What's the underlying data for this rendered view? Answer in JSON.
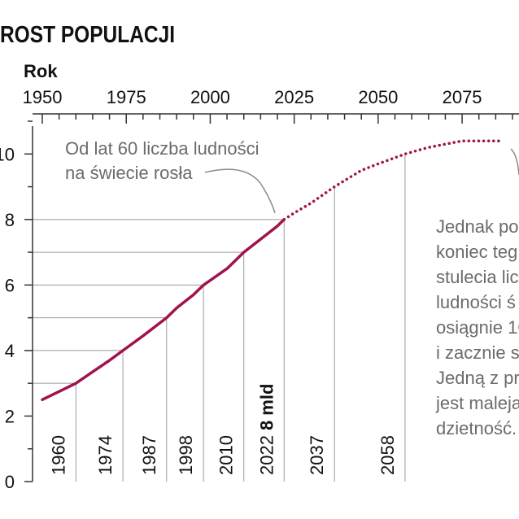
{
  "chart_data": {
    "type": "line",
    "title": "ROST POPULACJI",
    "x_axis_label": "Rok",
    "x_ticks": [
      1950,
      1975,
      2000,
      2025,
      2050,
      2075
    ],
    "y_ticks": [
      0,
      2,
      4,
      6,
      8,
      10
    ],
    "xlim": [
      1950,
      2090
    ],
    "ylim": [
      0,
      11
    ],
    "series": [
      {
        "style": "solid",
        "x": [
          1950,
          1955,
          1960,
          1965,
          1970,
          1974,
          1980,
          1987,
          1990,
          1995,
          1998,
          2005,
          2010,
          2015,
          2020,
          2022
        ],
        "y": [
          2.5,
          2.75,
          3.0,
          3.35,
          3.7,
          4.0,
          4.45,
          5.0,
          5.3,
          5.7,
          6.0,
          6.5,
          7.0,
          7.4,
          7.8,
          8.0
        ]
      },
      {
        "style": "dotted",
        "x": [
          2022,
          2025,
          2030,
          2037,
          2045,
          2050,
          2058,
          2065,
          2070,
          2075,
          2080,
          2086
        ],
        "y": [
          8.0,
          8.2,
          8.5,
          9.0,
          9.5,
          9.7,
          10.0,
          10.2,
          10.3,
          10.4,
          10.4,
          10.4
        ]
      }
    ],
    "milestones": [
      {
        "year": 1960,
        "value": 3,
        "label": "1960"
      },
      {
        "year": 1974,
        "value": 4,
        "label": "1974"
      },
      {
        "year": 1987,
        "value": 5,
        "label": "1987"
      },
      {
        "year": 1998,
        "value": 6,
        "label": "1998"
      },
      {
        "year": 2010,
        "value": 7,
        "label": "2010"
      },
      {
        "year": 2022,
        "value": 8,
        "label": "2022",
        "extra": "8 mld"
      },
      {
        "year": 2037,
        "value": 9,
        "label": "2037"
      },
      {
        "year": 2058,
        "value": 10,
        "label": "2058"
      }
    ],
    "annotations": [
      {
        "lines": [
          "Od lat 60 liczba ludności",
          "na świecie rosła"
        ]
      },
      {
        "lines": [
          "Jednak po",
          "koniec teg",
          "stulecia lic",
          "ludności ś",
          "osiągnie 1C",
          "i zacznie s",
          "Jedną z pr",
          "jest maleja",
          "dzietność."
        ]
      }
    ],
    "colors": {
      "line": "#a0134f",
      "axis": "#333333",
      "grid": "#9a9a9a",
      "text": "#6b6b6b"
    }
  }
}
